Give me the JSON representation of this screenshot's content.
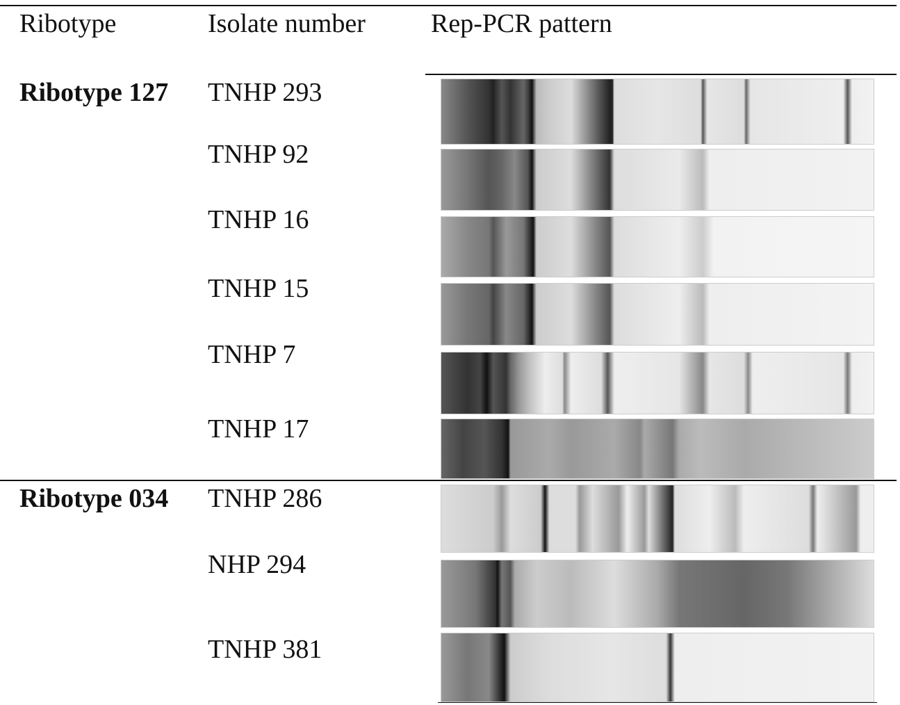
{
  "header": {
    "columns": [
      "Ribotype",
      "Isolate number",
      "Rep-PCR pattern"
    ]
  },
  "groups": [
    {
      "ribotype": "Ribotype 127",
      "isolates": [
        "TNHP 293",
        "TNHP 92",
        "TNHP 16",
        "TNHP 15",
        "TNHP 7",
        "TNHP 17"
      ]
    },
    {
      "ribotype": "Ribotype 034",
      "isolates": [
        "TNHP 286",
        "NHP 294",
        "TNHP 381"
      ]
    }
  ]
}
